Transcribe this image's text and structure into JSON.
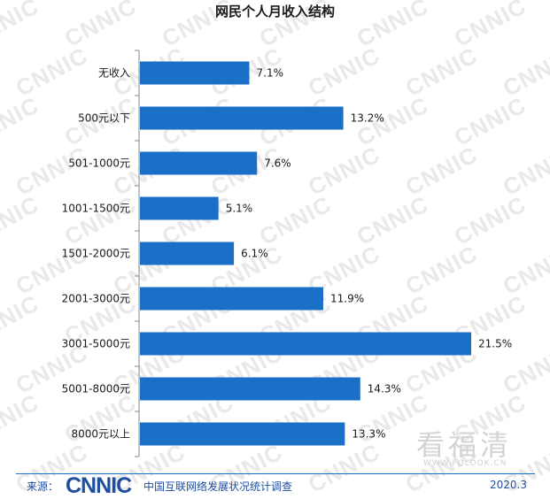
{
  "chart_data": {
    "type": "bar",
    "orientation": "horizontal",
    "title": "网民个人月收入结构",
    "categories": [
      "无收入",
      "500元以下",
      "501-1000元",
      "1001-1500元",
      "1501-2000元",
      "2001-3000元",
      "3001-5000元",
      "5001-8000元",
      "8000元以上"
    ],
    "values": [
      7.1,
      13.2,
      7.6,
      5.1,
      6.1,
      11.9,
      21.5,
      14.3,
      13.3
    ],
    "value_labels": [
      "7.1%",
      "13.2%",
      "7.6%",
      "5.1%",
      "6.1%",
      "11.9%",
      "21.5%",
      "14.3%",
      "13.3%"
    ],
    "xlim": [
      0,
      21.5
    ],
    "grid": false,
    "bar_color": "#1a6fc6"
  },
  "footer": {
    "source_prefix": "来源：",
    "logo": "CNNIC",
    "org": "中国互联网络发展状况统计调查",
    "date": "2020.3"
  },
  "watermark": {
    "text": "CNNIC",
    "corner_mark": "看福清",
    "corner_url": "WWW.FQLOOK.CN"
  }
}
